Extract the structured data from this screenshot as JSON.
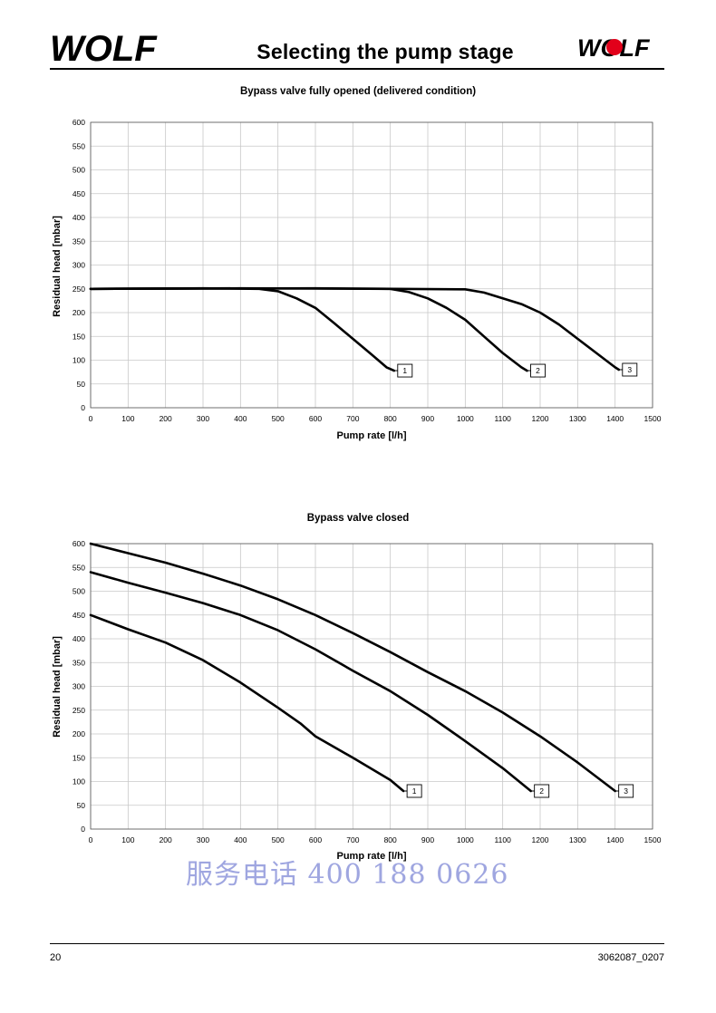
{
  "header": {
    "logo_text": "WOLF",
    "title": "Selecting the pump stage"
  },
  "chart_data": [
    {
      "type": "line",
      "title": "Bypass valve fully opened (delivered condition)",
      "xlabel": "Pump rate [l/h]",
      "ylabel": "Residual head [mbar]",
      "xlim": [
        0,
        1500
      ],
      "ylim": [
        0,
        600
      ],
      "xticks": [
        0,
        100,
        200,
        300,
        400,
        500,
        600,
        700,
        800,
        900,
        1000,
        1100,
        1200,
        1300,
        1400,
        1500
      ],
      "yticks": [
        0,
        50,
        100,
        150,
        200,
        250,
        300,
        350,
        400,
        450,
        500,
        550,
        600
      ],
      "grid": true,
      "series": [
        {
          "name": "1",
          "points": [
            [
              0,
              250
            ],
            [
              300,
              251
            ],
            [
              450,
              250
            ],
            [
              500,
              245
            ],
            [
              550,
              230
            ],
            [
              600,
              210
            ],
            [
              650,
              178
            ],
            [
              700,
              145
            ],
            [
              750,
              112
            ],
            [
              790,
              85
            ],
            [
              810,
              78
            ]
          ]
        },
        {
          "name": "2",
          "points": [
            [
              0,
              250
            ],
            [
              400,
              251
            ],
            [
              800,
              250
            ],
            [
              850,
              243
            ],
            [
              900,
              230
            ],
            [
              950,
              210
            ],
            [
              1000,
              185
            ],
            [
              1050,
              150
            ],
            [
              1100,
              115
            ],
            [
              1150,
              85
            ],
            [
              1165,
              78
            ]
          ]
        },
        {
          "name": "3",
          "points": [
            [
              0,
              250
            ],
            [
              600,
              251
            ],
            [
              1000,
              249
            ],
            [
              1050,
              242
            ],
            [
              1100,
              230
            ],
            [
              1150,
              218
            ],
            [
              1200,
              200
            ],
            [
              1250,
              175
            ],
            [
              1300,
              145
            ],
            [
              1350,
              115
            ],
            [
              1400,
              85
            ],
            [
              1410,
              80
            ]
          ]
        }
      ]
    },
    {
      "type": "line",
      "title": "Bypass valve closed",
      "xlabel": "Pump rate [l/h]",
      "ylabel": "Residual head [mbar]",
      "xlim": [
        0,
        1500
      ],
      "ylim": [
        0,
        600
      ],
      "xticks": [
        0,
        100,
        200,
        300,
        400,
        500,
        600,
        700,
        800,
        900,
        1000,
        1100,
        1200,
        1300,
        1400,
        1500
      ],
      "yticks": [
        0,
        50,
        100,
        150,
        200,
        250,
        300,
        350,
        400,
        450,
        500,
        550,
        600
      ],
      "grid": true,
      "series": [
        {
          "name": "1",
          "points": [
            [
              0,
              450
            ],
            [
              100,
              420
            ],
            [
              200,
              392
            ],
            [
              300,
              355
            ],
            [
              400,
              308
            ],
            [
              500,
              255
            ],
            [
              560,
              222
            ],
            [
              600,
              195
            ],
            [
              700,
              150
            ],
            [
              800,
              103
            ],
            [
              835,
              80
            ]
          ]
        },
        {
          "name": "2",
          "points": [
            [
              0,
              540
            ],
            [
              100,
              518
            ],
            [
              200,
              497
            ],
            [
              300,
              475
            ],
            [
              400,
              450
            ],
            [
              500,
              418
            ],
            [
              600,
              378
            ],
            [
              700,
              333
            ],
            [
              800,
              290
            ],
            [
              900,
              240
            ],
            [
              1000,
              185
            ],
            [
              1100,
              128
            ],
            [
              1175,
              80
            ]
          ]
        },
        {
          "name": "3",
          "points": [
            [
              0,
              600
            ],
            [
              100,
              580
            ],
            [
              200,
              560
            ],
            [
              300,
              537
            ],
            [
              400,
              512
            ],
            [
              500,
              483
            ],
            [
              600,
              450
            ],
            [
              700,
              412
            ],
            [
              800,
              372
            ],
            [
              900,
              330
            ],
            [
              1000,
              290
            ],
            [
              1100,
              245
            ],
            [
              1200,
              195
            ],
            [
              1300,
              140
            ],
            [
              1400,
              80
            ]
          ]
        }
      ]
    }
  ],
  "watermark": "服务电话 400 188 0626",
  "footer": {
    "page_number": "20",
    "doc_number": "3062087_0207"
  },
  "colors": {
    "line": "#000000",
    "grid": "#c8c8c8",
    "watermark": "#9fa6e0",
    "logo_red": "#e2001a"
  }
}
